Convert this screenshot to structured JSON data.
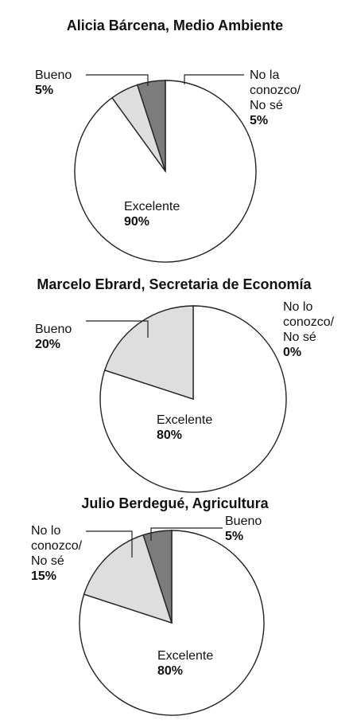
{
  "colors": {
    "excelente": "#ffffff",
    "bueno": "#dedede",
    "no_conozco": "#7c7c7c",
    "stroke": "#222222"
  },
  "chart_data": [
    {
      "type": "pie",
      "title": "Alicia Bárcena, Medio Ambiente",
      "slices": [
        {
          "label": [
            "Excelente"
          ],
          "value": 90,
          "value_text": "90%",
          "color": "#ffffff"
        },
        {
          "label": [
            "Bueno"
          ],
          "value": 5,
          "value_text": "5%",
          "color": "#dedede"
        },
        {
          "label": [
            "No la",
            "conozco/",
            "No sé"
          ],
          "value": 5,
          "value_text": "5%",
          "color": "#7c7c7c"
        }
      ]
    },
    {
      "type": "pie",
      "title": "Marcelo Ebrard, Secretaria de Economía",
      "slices": [
        {
          "label": [
            "Excelente"
          ],
          "value": 80,
          "value_text": "80%",
          "color": "#ffffff"
        },
        {
          "label": [
            "Bueno"
          ],
          "value": 20,
          "value_text": "20%",
          "color": "#dedede"
        },
        {
          "label": [
            "No lo",
            "conozco/",
            "No sé"
          ],
          "value": 0,
          "value_text": "0%",
          "color": "#7c7c7c"
        }
      ]
    },
    {
      "type": "pie",
      "title": "Julio Berdegué, Agricultura",
      "slices": [
        {
          "label": [
            "Excelente"
          ],
          "value": 80,
          "value_text": "80%",
          "color": "#ffffff"
        },
        {
          "label": [
            "No lo",
            "conozco/",
            "No sé"
          ],
          "value": 15,
          "value_text": "15%",
          "color": "#dedede"
        },
        {
          "label": [
            "Bueno"
          ],
          "value": 5,
          "value_text": "5%",
          "color": "#7c7c7c"
        }
      ]
    }
  ]
}
